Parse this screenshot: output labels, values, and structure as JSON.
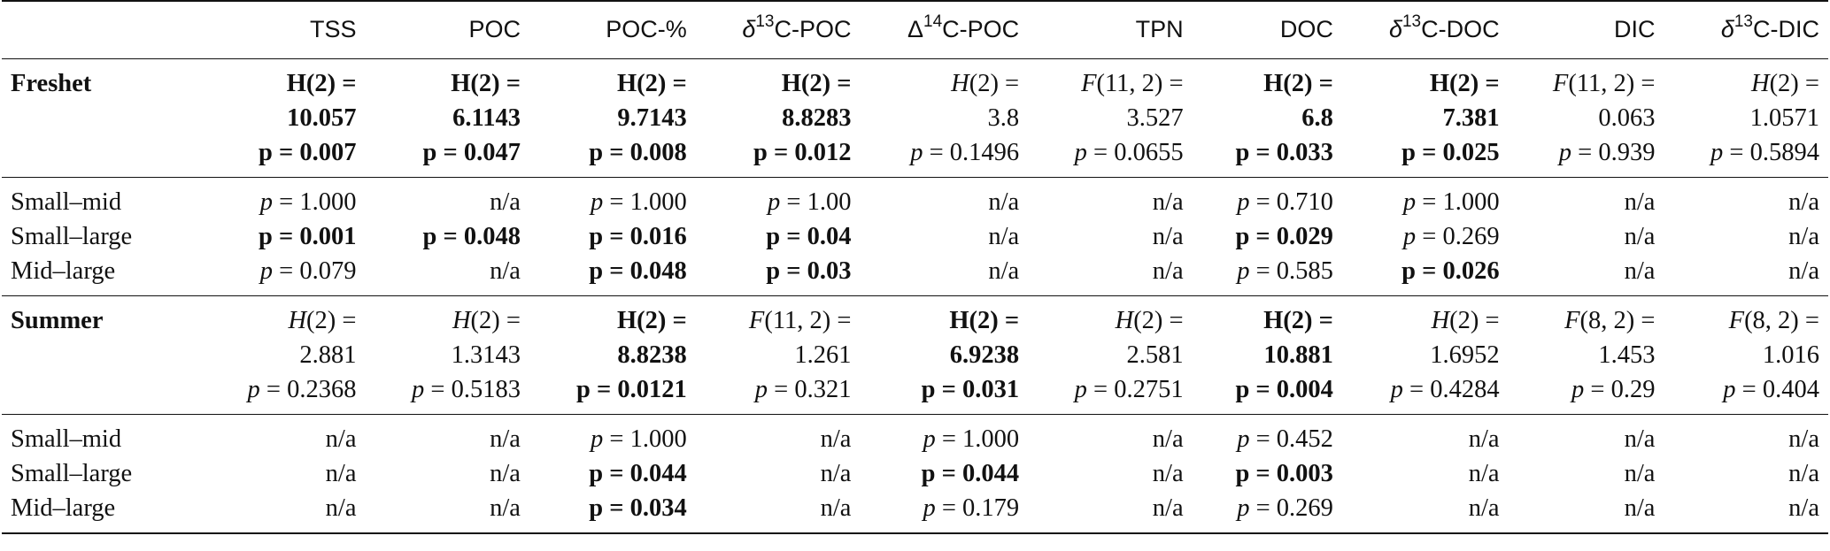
{
  "table": {
    "header": {
      "label": "",
      "columns": [
        {
          "prefix": "",
          "sup": "",
          "name": "TSS"
        },
        {
          "prefix": "",
          "sup": "",
          "name": "POC"
        },
        {
          "prefix": "",
          "sup": "",
          "name": "POC-%"
        },
        {
          "prefix": "δ",
          "sup": "13",
          "name": "C-POC"
        },
        {
          "prefix": "Δ",
          "sup": "14",
          "name": "C-POC"
        },
        {
          "prefix": "",
          "sup": "",
          "name": "TPN"
        },
        {
          "prefix": "",
          "sup": "",
          "name": "DOC"
        },
        {
          "prefix": "δ",
          "sup": "13",
          "name": "C-DOC"
        },
        {
          "prefix": "",
          "sup": "",
          "name": "DIC"
        },
        {
          "prefix": "δ",
          "sup": "13",
          "name": "C-DIC"
        }
      ]
    },
    "sections": [
      {
        "season": "Freshet",
        "tests": [
          {
            "bold": true,
            "l1": "H(2) =",
            "l2": "10.057",
            "l3": "p = 0.007"
          },
          {
            "bold": true,
            "l1": "H(2) =",
            "l2": "6.1143",
            "l3": "p = 0.047"
          },
          {
            "bold": true,
            "l1": "H(2) =",
            "l2": "9.7143",
            "l3": "p = 0.008"
          },
          {
            "bold": true,
            "l1": "H(2) =",
            "l2": "8.8283",
            "l3": "p = 0.012"
          },
          {
            "bold": false,
            "l1": "H(2) =",
            "l2": "3.8",
            "l3": "p = 0.1496"
          },
          {
            "bold": false,
            "l1": "F(11, 2) =",
            "l2": "3.527",
            "l3": "p = 0.0655"
          },
          {
            "bold": true,
            "l1": "H(2) =",
            "l2": "6.8",
            "l3": "p = 0.033"
          },
          {
            "bold": true,
            "l1": "H(2) =",
            "l2": "7.381",
            "l3": "p = 0.025"
          },
          {
            "bold": false,
            "l1": "F(11, 2) =",
            "l2": "0.063",
            "l3": "p = 0.939"
          },
          {
            "bold": false,
            "l1": "H(2) =",
            "l2": "1.0571",
            "l3": "p = 0.5894"
          }
        ],
        "pairs": [
          {
            "label": "Small–mid",
            "cells": [
              {
                "v": "p = 1.000",
                "b": false
              },
              {
                "v": "n/a",
                "b": false
              },
              {
                "v": "p = 1.000",
                "b": false
              },
              {
                "v": "p = 1.00",
                "b": false
              },
              {
                "v": "n/a",
                "b": false
              },
              {
                "v": "n/a",
                "b": false
              },
              {
                "v": "p = 0.710",
                "b": false
              },
              {
                "v": "p = 1.000",
                "b": false
              },
              {
                "v": "n/a",
                "b": false
              },
              {
                "v": "n/a",
                "b": false
              }
            ]
          },
          {
            "label": "Small–large",
            "cells": [
              {
                "v": "p = 0.001",
                "b": true
              },
              {
                "v": "p = 0.048",
                "b": true
              },
              {
                "v": "p = 0.016",
                "b": true
              },
              {
                "v": "p = 0.04",
                "b": true
              },
              {
                "v": "n/a",
                "b": false
              },
              {
                "v": "n/a",
                "b": false
              },
              {
                "v": "p = 0.029",
                "b": true
              },
              {
                "v": "p = 0.269",
                "b": false
              },
              {
                "v": "n/a",
                "b": false
              },
              {
                "v": "n/a",
                "b": false
              }
            ]
          },
          {
            "label": "Mid–large",
            "cells": [
              {
                "v": "p = 0.079",
                "b": false
              },
              {
                "v": "n/a",
                "b": false
              },
              {
                "v": "p = 0.048",
                "b": true
              },
              {
                "v": "p = 0.03",
                "b": true
              },
              {
                "v": "n/a",
                "b": false
              },
              {
                "v": "n/a",
                "b": false
              },
              {
                "v": "p = 0.585",
                "b": false
              },
              {
                "v": "p = 0.026",
                "b": true
              },
              {
                "v": "n/a",
                "b": false
              },
              {
                "v": "n/a",
                "b": false
              }
            ]
          }
        ]
      },
      {
        "season": "Summer",
        "tests": [
          {
            "bold": false,
            "l1": "H(2) =",
            "l2": "2.881",
            "l3": "p = 0.2368"
          },
          {
            "bold": false,
            "l1": "H(2) =",
            "l2": "1.3143",
            "l3": "p = 0.5183"
          },
          {
            "bold": true,
            "l1": "H(2) =",
            "l2": "8.8238",
            "l3": "p = 0.0121"
          },
          {
            "bold": false,
            "l1": "F(11, 2) =",
            "l2": "1.261",
            "l3": "p = 0.321"
          },
          {
            "bold": true,
            "l1": "H(2) =",
            "l2": "6.9238",
            "l3": "p = 0.031"
          },
          {
            "bold": false,
            "l1": "H(2) =",
            "l2": "2.581",
            "l3": "p = 0.2751"
          },
          {
            "bold": true,
            "l1": "H(2) =",
            "l2": "10.881",
            "l3": "p = 0.004"
          },
          {
            "bold": false,
            "l1": "H(2) =",
            "l2": "1.6952",
            "l3": "p = 0.4284"
          },
          {
            "bold": false,
            "l1": "F(8, 2) =",
            "l2": "1.453",
            "l3": "p = 0.29"
          },
          {
            "bold": false,
            "l1": "F(8, 2) =",
            "l2": "1.016",
            "l3": "p = 0.404"
          }
        ],
        "pairs": [
          {
            "label": "Small–mid",
            "cells": [
              {
                "v": "n/a",
                "b": false
              },
              {
                "v": "n/a",
                "b": false
              },
              {
                "v": "p = 1.000",
                "b": false
              },
              {
                "v": "n/a",
                "b": false
              },
              {
                "v": "p = 1.000",
                "b": false
              },
              {
                "v": "n/a",
                "b": false
              },
              {
                "v": "p = 0.452",
                "b": false
              },
              {
                "v": "n/a",
                "b": false
              },
              {
                "v": "n/a",
                "b": false
              },
              {
                "v": "n/a",
                "b": false
              }
            ]
          },
          {
            "label": "Small–large",
            "cells": [
              {
                "v": "n/a",
                "b": false
              },
              {
                "v": "n/a",
                "b": false
              },
              {
                "v": "p = 0.044",
                "b": true
              },
              {
                "v": "n/a",
                "b": false
              },
              {
                "v": "p = 0.044",
                "b": true
              },
              {
                "v": "n/a",
                "b": false
              },
              {
                "v": "p = 0.003",
                "b": true
              },
              {
                "v": "n/a",
                "b": false
              },
              {
                "v": "n/a",
                "b": false
              },
              {
                "v": "n/a",
                "b": false
              }
            ]
          },
          {
            "label": "Mid–large",
            "cells": [
              {
                "v": "n/a",
                "b": false
              },
              {
                "v": "n/a",
                "b": false
              },
              {
                "v": "p = 0.034",
                "b": true
              },
              {
                "v": "n/a",
                "b": false
              },
              {
                "v": "p = 0.179",
                "b": false
              },
              {
                "v": "n/a",
                "b": false
              },
              {
                "v": "p = 0.269",
                "b": false
              },
              {
                "v": "n/a",
                "b": false
              },
              {
                "v": "n/a",
                "b": false
              },
              {
                "v": "n/a",
                "b": false
              }
            ]
          }
        ]
      }
    ]
  }
}
